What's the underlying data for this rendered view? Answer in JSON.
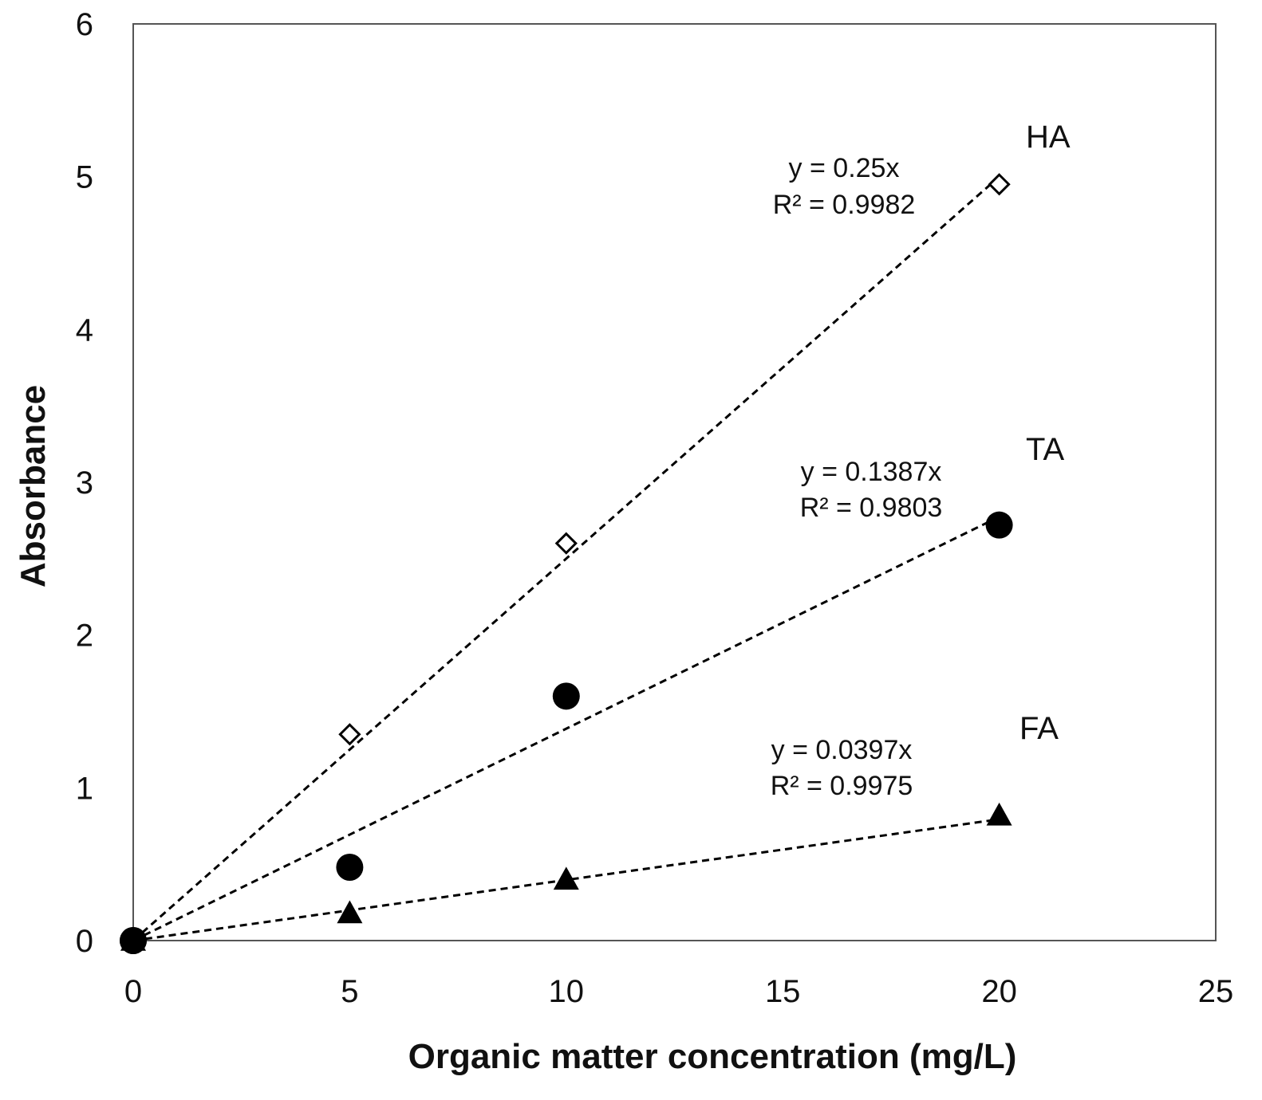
{
  "chart_data": {
    "type": "scatter",
    "title": "",
    "xlabel": "Organic matter concentration (mg/L)",
    "ylabel": "Absorbance",
    "xlim": [
      0,
      25
    ],
    "ylim": [
      0,
      6
    ],
    "xticks": [
      0,
      5,
      10,
      15,
      20,
      25
    ],
    "yticks": [
      0,
      1,
      2,
      3,
      4,
      5,
      6
    ],
    "grid": false,
    "legend": "none",
    "trendline_style": "dashed linear through origin",
    "series": [
      {
        "name": "HA",
        "marker": "open-diamond",
        "color": "#000000",
        "x": [
          0,
          5,
          10,
          20
        ],
        "y": [
          0,
          1.35,
          2.6,
          4.95
        ],
        "slope": 0.25,
        "equation": "y = 0.25x",
        "r2": "R² = 0.9982"
      },
      {
        "name": "TA",
        "marker": "filled-circle",
        "color": "#000000",
        "x": [
          0,
          5,
          10,
          20
        ],
        "y": [
          0,
          0.48,
          1.6,
          2.72
        ],
        "slope": 0.1387,
        "equation": "y = 0.1387x",
        "r2": "R² = 0.9803"
      },
      {
        "name": "FA",
        "marker": "filled-triangle",
        "color": "#000000",
        "x": [
          0,
          5,
          10,
          20
        ],
        "y": [
          0,
          0.18,
          0.4,
          0.82
        ],
        "slope": 0.0397,
        "equation": "y = 0.0397x",
        "r2": "R² = 0.9975"
      }
    ]
  }
}
